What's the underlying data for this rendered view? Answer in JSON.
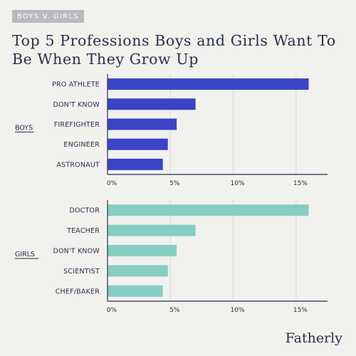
{
  "badge": "BOYS V. GIRLS",
  "title": "Top 5 Professions Boys and Girls Want To Be When They Grow Up",
  "logo": "Fatherly",
  "colors": {
    "boys": "#3a44c7",
    "girls": "#86cec2",
    "grid": "#d8d8d6",
    "text": "#2a3147"
  },
  "chart_data": [
    {
      "type": "bar",
      "orientation": "horizontal",
      "group_label": "BOYS",
      "categories": [
        "PRO ATHLETE",
        "DON'T KNOW",
        "FIREFIGHTER",
        "ENGINEER",
        "ASTRONAUT"
      ],
      "values": [
        16,
        7,
        5.5,
        4.8,
        4.4
      ],
      "xlim": [
        0,
        17.5
      ],
      "xticks": [
        "0%",
        "5%",
        "10%",
        "15%"
      ],
      "xtick_values": [
        0,
        5,
        10,
        15
      ],
      "grid": true
    },
    {
      "type": "bar",
      "orientation": "horizontal",
      "group_label": "GIRLS",
      "categories": [
        "DOCTOR",
        "TEACHER",
        "DON'T KNOW",
        "SCIENTIST",
        "CHEF/BAKER"
      ],
      "values": [
        16,
        7,
        5.5,
        4.8,
        4.4
      ],
      "xlim": [
        0,
        17.5
      ],
      "xticks": [
        "0%",
        "5%",
        "10%",
        "15%"
      ],
      "xtick_values": [
        0,
        5,
        10,
        15
      ],
      "grid": true
    }
  ]
}
